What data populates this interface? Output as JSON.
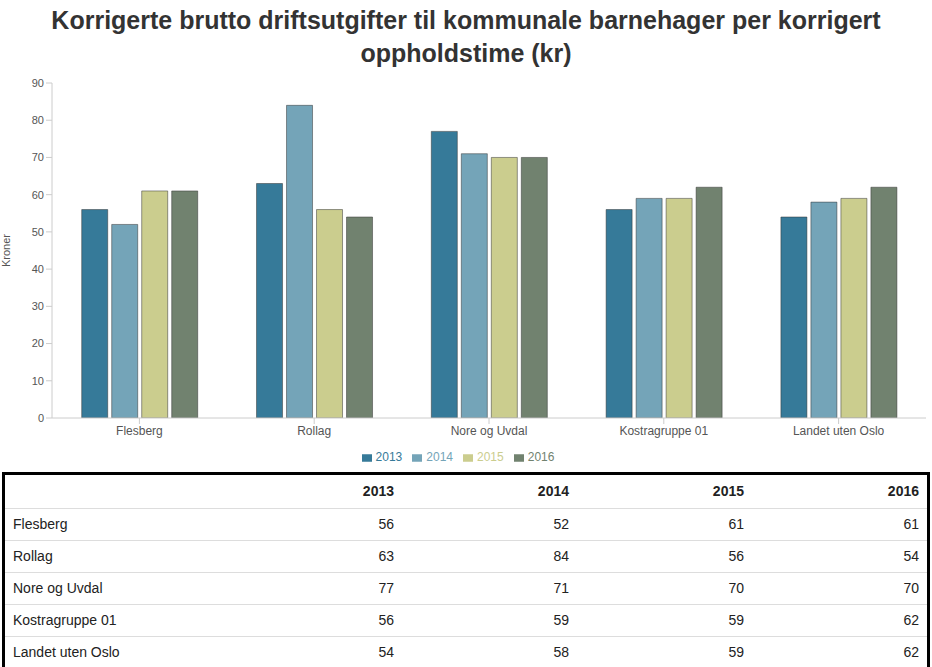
{
  "chart_data": {
    "type": "bar",
    "title": "Korrigerte brutto driftsutgifter til kommunale barnehager per korrigert oppholdstime (kr)",
    "y_label": "Kroner",
    "categories": [
      "Flesberg",
      "Rollag",
      "Nore og Uvdal",
      "Kostragruppe 01",
      "Landet uten Oslo"
    ],
    "series": [
      {
        "name": "2013",
        "color": "#367a99",
        "values": [
          56,
          63,
          77,
          56,
          54
        ]
      },
      {
        "name": "2014",
        "color": "#74a4b8",
        "values": [
          52,
          84,
          71,
          59,
          58
        ]
      },
      {
        "name": "2015",
        "color": "#cbcd8e",
        "values": [
          61,
          56,
          70,
          59,
          59
        ]
      },
      {
        "name": "2016",
        "color": "#71826f",
        "values": [
          61,
          54,
          70,
          62,
          62
        ]
      }
    ],
    "ylim": [
      0,
      90
    ],
    "yticks": [
      0,
      10,
      20,
      30,
      40,
      50,
      60,
      70,
      80,
      90
    ],
    "grid": false,
    "legend": "bottom"
  }
}
